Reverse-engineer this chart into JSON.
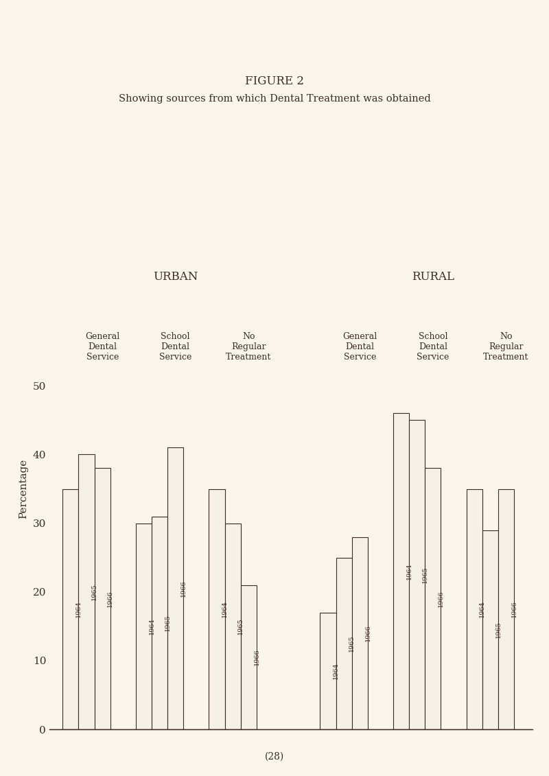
{
  "title": "FIGURE 2",
  "subtitle": "Showing sources from which Dental Treatment was obtained",
  "urban_label": "URBAN",
  "rural_label": "RURAL",
  "ylabel": "Percentage",
  "ylim": [
    0,
    50
  ],
  "yticks": [
    0,
    10,
    20,
    30,
    40,
    50
  ],
  "years": [
    "1964",
    "1965",
    "1966"
  ],
  "urban_groups": [
    {
      "name": "General\nDental\nService",
      "values": [
        35,
        40,
        38
      ]
    },
    {
      "name": "School\nDental\nService",
      "values": [
        30,
        31,
        41
      ]
    },
    {
      "name": "No\nRegular\nTreatment",
      "values": [
        35,
        30,
        21
      ]
    }
  ],
  "rural_groups": [
    {
      "name": "General\nDental\nService",
      "values": [
        17,
        25,
        28
      ]
    },
    {
      "name": "School\nDental\nService",
      "values": [
        46,
        45,
        38
      ]
    },
    {
      "name": "No\nRegular\nTreatment",
      "values": [
        35,
        29,
        35
      ]
    }
  ],
  "bar_facecolor": "#f5f0e8",
  "bar_edgecolor": "#3d2b1f",
  "background_color": "#faf6ed",
  "text_color": "#3d2b1f",
  "bar_width": 0.75,
  "page_number": "(28)"
}
